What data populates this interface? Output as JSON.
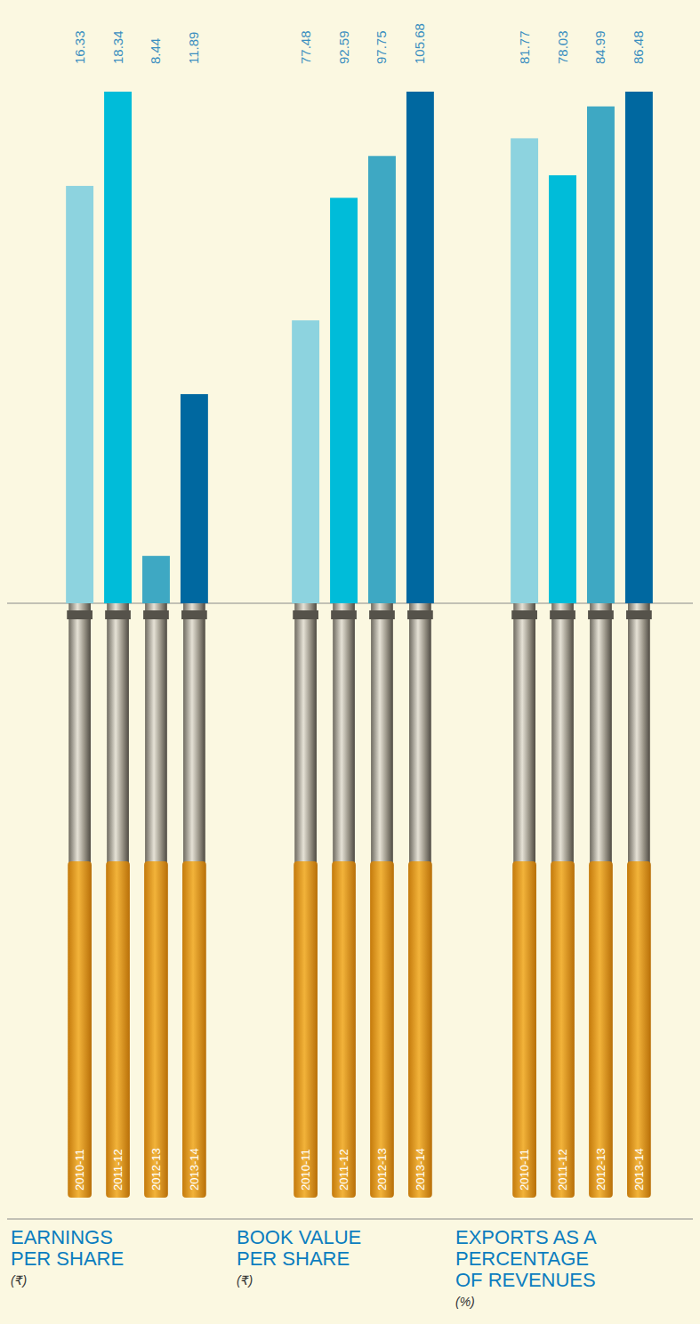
{
  "chart_data": [
    {
      "type": "bar",
      "title": "EARNINGS PER SHARE",
      "subtitle": "(₹)",
      "categories": [
        "2010-11",
        "2011-12",
        "2012-13",
        "2013-14"
      ],
      "values": [
        16.33,
        18.34,
        8.44,
        11.89
      ],
      "colors": [
        "#8dd3df",
        "#00bcd9",
        "#3ea8c3",
        "#0068a0"
      ],
      "ylim": [
        7.43,
        18.34
      ],
      "data_labels": true,
      "tick_labels": "x"
    },
    {
      "type": "bar",
      "title": "BOOK VALUE PER SHARE",
      "subtitle": "(₹)",
      "categories": [
        "2010-11",
        "2011-12",
        "2012-13",
        "2013-14"
      ],
      "values": [
        77.48,
        92.59,
        97.75,
        105.68
      ],
      "colors": [
        "#8dd3df",
        "#00bcd9",
        "#3ea8c3",
        "#0068a0"
      ],
      "ylim": [
        42.6,
        105.68
      ],
      "data_labels": true,
      "tick_labels": "x"
    },
    {
      "type": "bar",
      "title": "EXPORTS AS A PERCENTAGE OF REVENUES",
      "subtitle": "(%)",
      "categories": [
        "2010-11",
        "2011-12",
        "2012-13",
        "2013-14"
      ],
      "values": [
        81.77,
        78.03,
        84.99,
        86.48
      ],
      "colors": [
        "#8dd3df",
        "#00bcd9",
        "#3ea8c3",
        "#0068a0"
      ],
      "ylim": [
        34.8,
        86.48
      ],
      "data_labels": true,
      "tick_labels": "x"
    }
  ]
}
